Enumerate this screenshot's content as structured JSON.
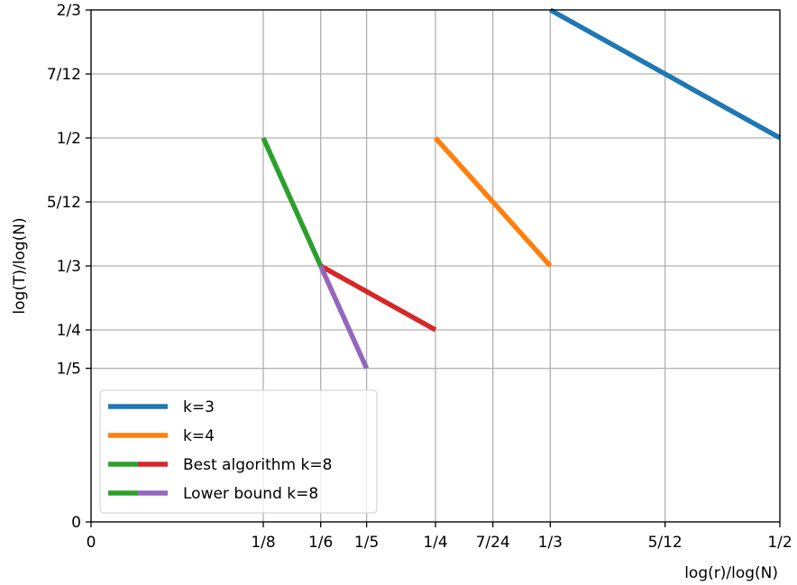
{
  "chart_data": {
    "type": "line",
    "xlabel": "log(r)/log(N)",
    "ylabel": "log(T)/log(N)",
    "xlim": [
      0,
      0.5
    ],
    "ylim": [
      0,
      0.6667
    ],
    "grid": true,
    "legend_position": "lower-left",
    "x_ticks": [
      {
        "value": 0,
        "label": "0"
      },
      {
        "value": 0.125,
        "label": "1/8"
      },
      {
        "value": 0.16667,
        "label": "1/6"
      },
      {
        "value": 0.2,
        "label": "1/5"
      },
      {
        "value": 0.25,
        "label": "1/4"
      },
      {
        "value": 0.29167,
        "label": "7/24"
      },
      {
        "value": 0.33333,
        "label": "1/3"
      },
      {
        "value": 0.41667,
        "label": "5/12"
      },
      {
        "value": 0.5,
        "label": "1/2"
      }
    ],
    "y_ticks": [
      {
        "value": 0,
        "label": "0"
      },
      {
        "value": 0.2,
        "label": "1/5"
      },
      {
        "value": 0.25,
        "label": "1/4"
      },
      {
        "value": 0.33333,
        "label": "1/3"
      },
      {
        "value": 0.41667,
        "label": "5/12"
      },
      {
        "value": 0.5,
        "label": "1/2"
      },
      {
        "value": 0.58333,
        "label": "7/12"
      },
      {
        "value": 0.66667,
        "label": "2/3"
      }
    ],
    "series": [
      {
        "name": "k=3",
        "color": "#1f77b4",
        "points": [
          [
            0.33333,
            0.66667
          ],
          [
            0.5,
            0.5
          ]
        ]
      },
      {
        "name": "k=4",
        "color": "#ff7f0e",
        "points": [
          [
            0.25,
            0.5
          ],
          [
            0.33333,
            0.33333
          ]
        ]
      },
      {
        "name": "",
        "color": "#2ca02c",
        "points": [
          [
            0.125,
            0.5
          ],
          [
            0.16667,
            0.33333
          ]
        ]
      },
      {
        "name": "",
        "color": "#d62728",
        "points": [
          [
            0.16667,
            0.33333
          ],
          [
            0.25,
            0.25
          ]
        ]
      },
      {
        "name": "",
        "color": "#9467bd",
        "points": [
          [
            0.16667,
            0.33333
          ],
          [
            0.2,
            0.2
          ]
        ]
      }
    ],
    "legend": [
      {
        "label": "k=3",
        "colors": [
          "#1f77b4"
        ]
      },
      {
        "label": "k=4",
        "colors": [
          "#ff7f0e"
        ]
      },
      {
        "label": "Best algorithm k=8",
        "colors": [
          "#2ca02c",
          "#d62728"
        ]
      },
      {
        "label": "Lower bound k=8",
        "colors": [
          "#2ca02c",
          "#9467bd"
        ]
      }
    ]
  }
}
